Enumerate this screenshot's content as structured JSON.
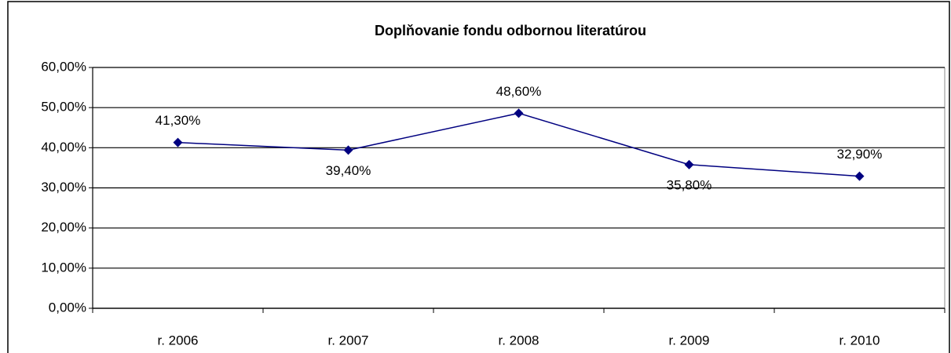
{
  "chart_data": {
    "type": "line",
    "title": "Doplňovanie fondu odbornou literatúrou",
    "categories": [
      "r. 2006",
      "r. 2007",
      "r. 2008",
      "r. 2009",
      "r. 2010"
    ],
    "values": [
      41.3,
      39.4,
      48.6,
      35.8,
      32.9
    ],
    "value_labels": [
      "41,30%",
      "39,40%",
      "48,60%",
      "35,80%",
      "32,90%"
    ],
    "color": "#000080",
    "ylim": [
      0,
      60
    ],
    "yticks": [
      {
        "value": 0,
        "label": "0,00%"
      },
      {
        "value": 10,
        "label": "10,00%"
      },
      {
        "value": 20,
        "label": "20,00%"
      },
      {
        "value": 30,
        "label": "30,00%"
      },
      {
        "value": 40,
        "label": "40,00%"
      },
      {
        "value": 50,
        "label": "50,00%"
      },
      {
        "value": 60,
        "label": "60,00%"
      }
    ],
    "grid": true
  }
}
